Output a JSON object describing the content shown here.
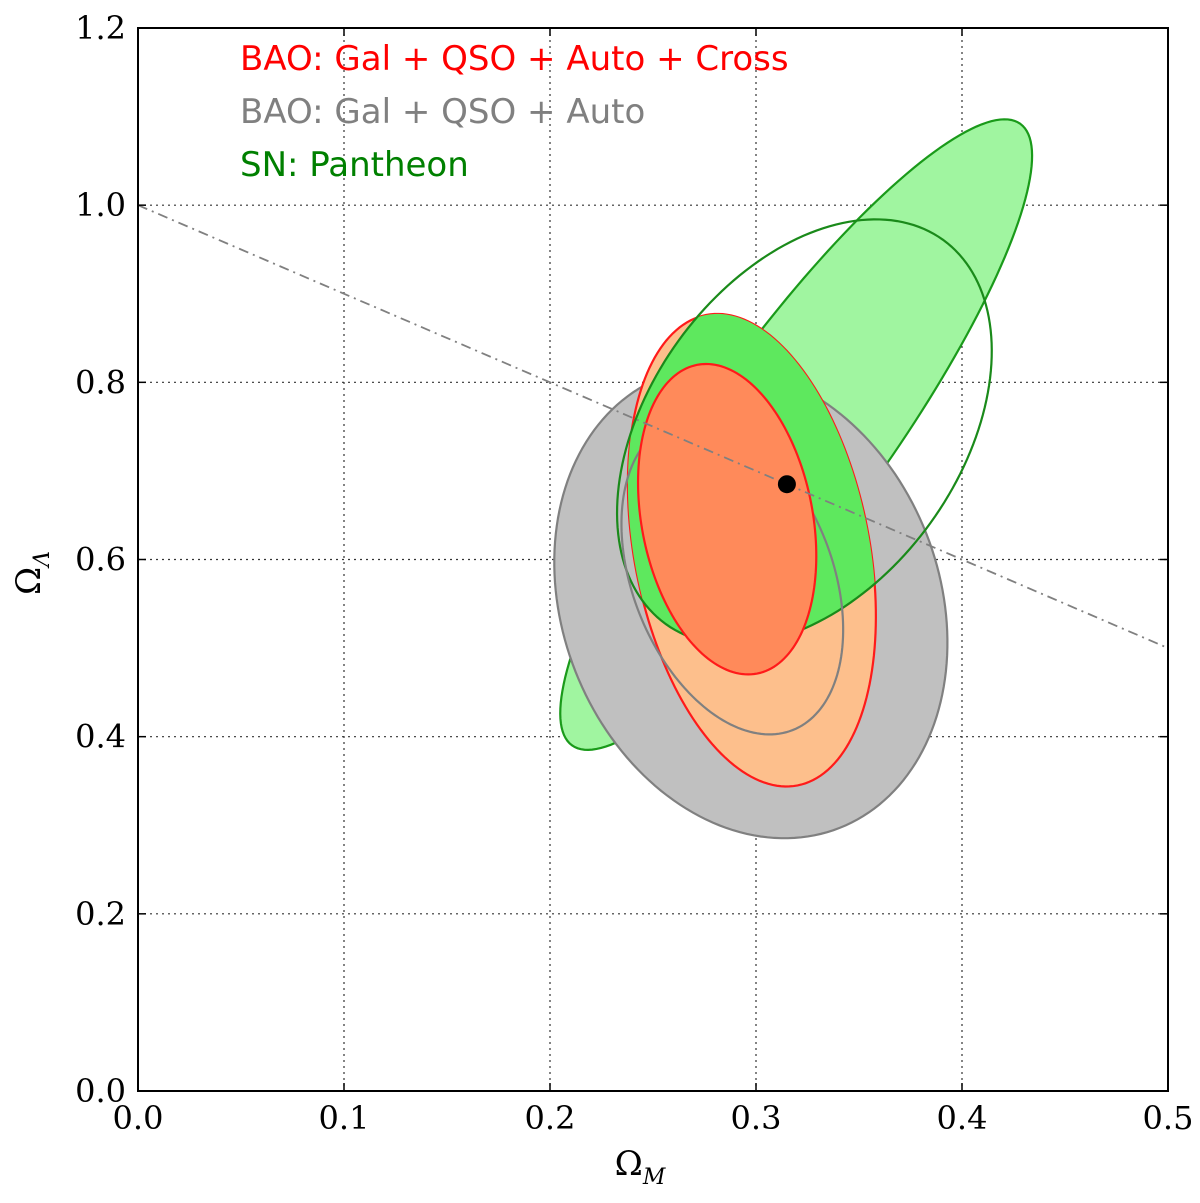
{
  "chart_data": {
    "type": "contour",
    "title": "",
    "xlabel": {
      "main": "Ω",
      "sub": "M"
    },
    "ylabel": {
      "main": "Ω",
      "sub": "Λ"
    },
    "xlim": [
      0.0,
      0.5
    ],
    "ylim": [
      0.0,
      1.2
    ],
    "xticks": [
      "0.0",
      "0.1",
      "0.2",
      "0.3",
      "0.4",
      "0.5"
    ],
    "yticks": [
      "0.0",
      "0.2",
      "0.4",
      "0.6",
      "0.8",
      "1.0",
      "1.2"
    ],
    "grid": true,
    "legend_position": "top-left",
    "legend": [
      {
        "label": "BAO: Gal + QSO + Auto + Cross",
        "color": "#ff0000"
      },
      {
        "label": "BAO: Gal + QSO + Auto",
        "color": "#808080"
      },
      {
        "label": "SN: Pantheon",
        "color": "#008000"
      }
    ],
    "flat_universe_line": {
      "x": [
        0.0,
        0.5
      ],
      "y": [
        1.0,
        0.5
      ],
      "color": "#808080",
      "style": "dash-dot"
    },
    "best_fit_point": {
      "x": 0.315,
      "y": 0.685,
      "color": "#000000"
    },
    "contours": [
      {
        "name": "SN: Pantheon",
        "level": "2-sigma",
        "cx": 0.3195,
        "cy": 0.741,
        "rx": 0.186,
        "ry": 0.1025,
        "angle_deg": 54.2,
        "fill": "#a0f5a0",
        "stroke": "#1a9a1a"
      },
      {
        "name": "BAO: Gal + QSO + Auto",
        "level": "2-sigma",
        "cx": 0.2975,
        "cy": 0.5515,
        "rx": 0.0915,
        "ry": 0.2735,
        "angle_deg": 21.5,
        "fill": "#c0c0c0",
        "stroke": "#808080"
      },
      {
        "name": "BAO: Gal + QSO + Auto + Cross",
        "level": "2-sigma",
        "cx": 0.298,
        "cy": 0.6105,
        "rx": 0.057,
        "ry": 0.2705,
        "angle_deg": 11.0,
        "fill": "#fdbf8c",
        "stroke": "#ff1a1a"
      },
      {
        "name": "SN: Pantheon",
        "level": "1-sigma",
        "cx": 0.3235,
        "cy": 0.744,
        "rx": 0.115,
        "ry": 0.1755,
        "angle_deg": 54.2,
        "fill": "#5ee85e",
        "stroke": "#1a8a1a",
        "clip_to": "BAO: Gal + QSO + Auto + Cross"
      },
      {
        "name": "BAO: Gal + QSO + Auto",
        "level": "1-sigma",
        "cx": 0.2885,
        "cy": 0.5805,
        "rx": 0.0485,
        "ry": 0.186,
        "angle_deg": 21.5,
        "fill": "none",
        "stroke": "#808080"
      },
      {
        "name": "BAO: Gal + QSO + Auto + Cross",
        "level": "1-sigma",
        "cx": 0.286,
        "cy": 0.6455,
        "rx": 0.0415,
        "ry": 0.1775,
        "angle_deg": 11.0,
        "fill": "#ff8a5a",
        "stroke": "#ff1a1a"
      }
    ]
  }
}
